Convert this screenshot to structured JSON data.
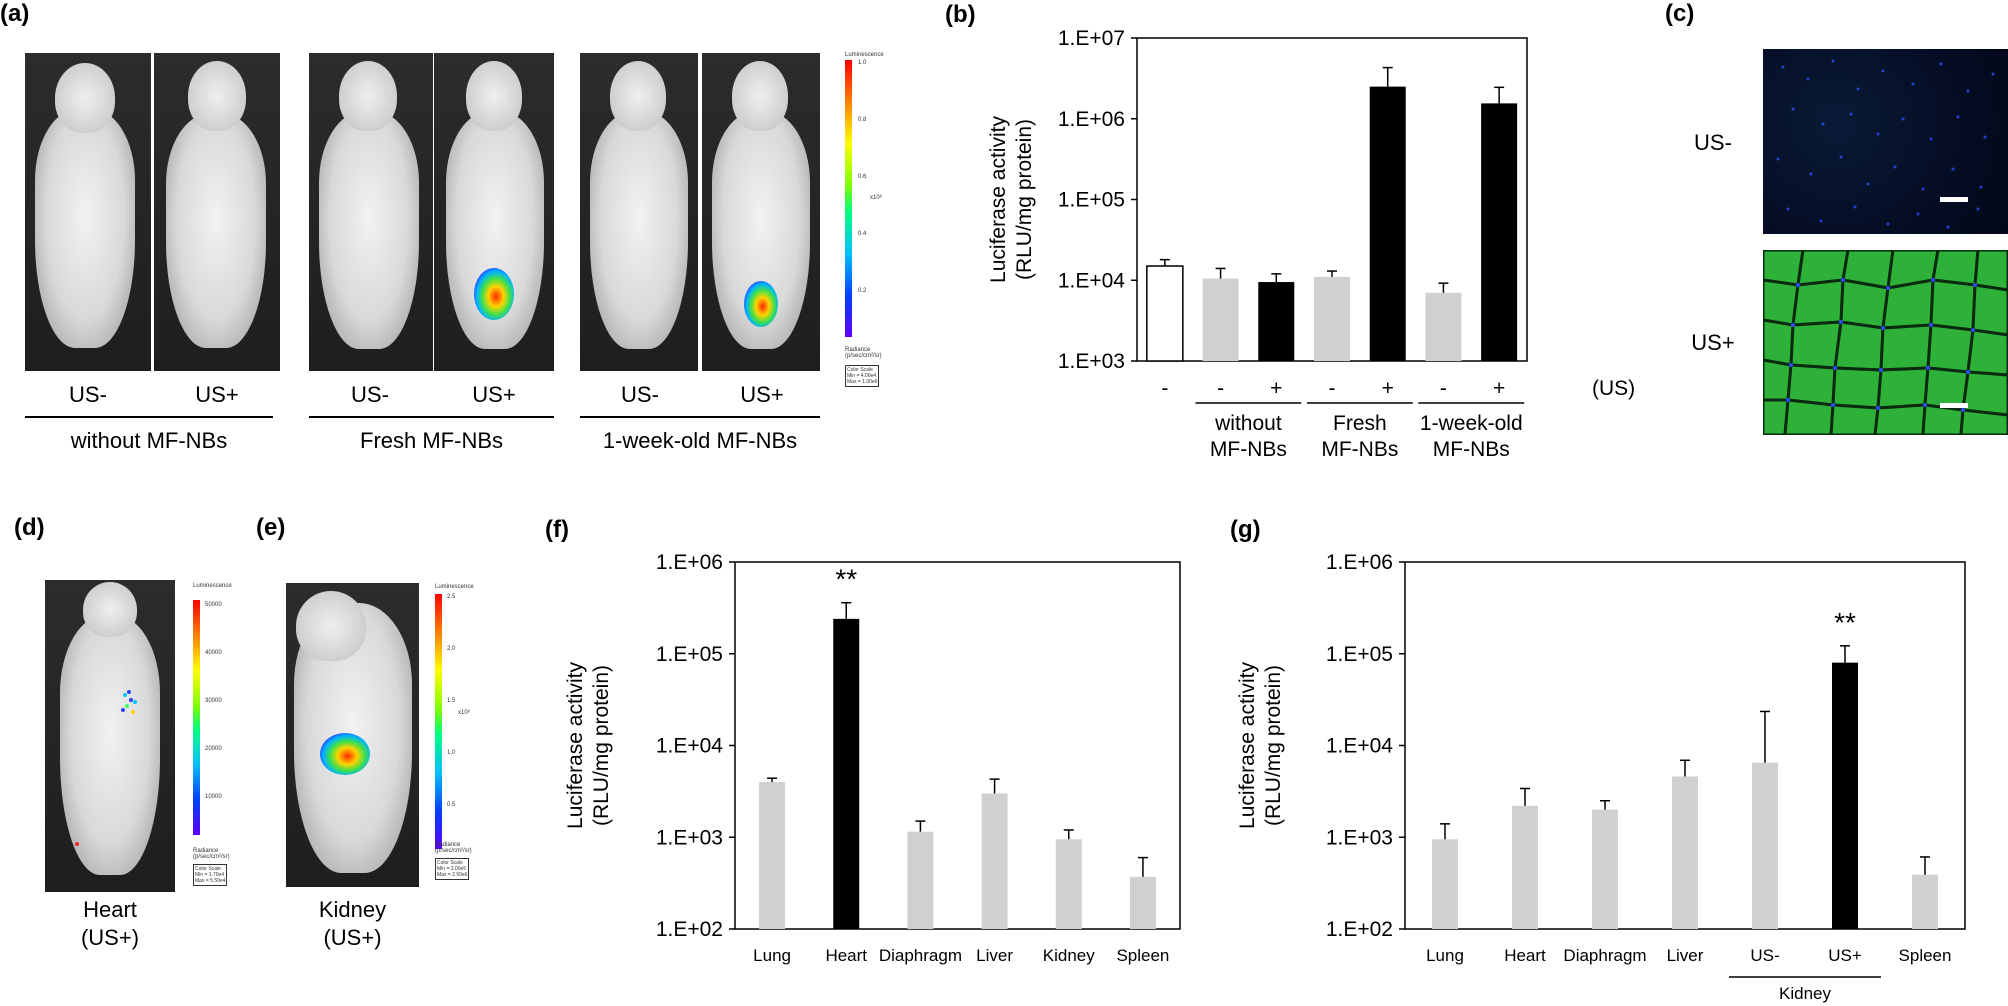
{
  "panels": {
    "a": {
      "label": "(a)",
      "us_minus": "US-",
      "us_plus": "US+",
      "groups": [
        "without MF-NBs",
        "Fresh MF-NBs",
        "1-week-old MF-NBs"
      ],
      "scale": {
        "title": "Luminescence",
        "ticks": [
          "1.0",
          "0.8",
          "0.6",
          "0.4",
          "0.2"
        ],
        "unit": "x10⁶",
        "radiance": "Radiance\n(p/sec/cm²/sr)",
        "box": "Color Scale\nMin = 4.00e4\nMax = 1.00e6"
      }
    },
    "c": {
      "label": "(c)",
      "rows": [
        "US-",
        "US+"
      ]
    },
    "d": {
      "label": "(d)",
      "caption1": "Heart",
      "caption2": "(US+)",
      "scale": {
        "title": "Luminescence",
        "ticks": [
          "50000",
          "40000",
          "30000",
          "20000",
          "10000"
        ],
        "radiance": "Radiance\n(p/sec/cm²/sr)",
        "box": "Color Scale\nMin = 1.70e4\nMax = 5.50e4"
      }
    },
    "e": {
      "label": "(e)",
      "caption1": "Kidney",
      "caption2": "(US+)",
      "scale": {
        "title": "Luminescence",
        "ticks": [
          "2.5",
          "2.0",
          "1.5",
          "1.0",
          "0.5"
        ],
        "unit": "x10⁶",
        "radiance": "Radiance\n(p/sec/cm²/sr)",
        "box": "Color Scale\nMin = 3.00e5\nMax = 2.50e6"
      }
    }
  },
  "chart_data": [
    {
      "id": "b",
      "panel_label": "(b)",
      "type": "bar",
      "yscale": "log",
      "ylim": [
        1000,
        10000000
      ],
      "yticks": [
        "1.E+03",
        "1.E+04",
        "1.E+05",
        "1.E+06",
        "1.E+07"
      ],
      "ylabel": "Luciferase activity\n(RLU/mg protein)",
      "categories": [
        "-",
        "-",
        "+",
        "-",
        "+",
        "-",
        "+"
      ],
      "values": [
        15000,
        10500,
        9500,
        11000,
        2500000,
        7000,
        1550000
      ],
      "errors": [
        3000,
        3500,
        2500,
        2000,
        1800000,
        2200,
        900000
      ],
      "colors": [
        "#ffffff",
        "#d0d0d0",
        "#000000",
        "#d0d0d0",
        "#000000",
        "#d0d0d0",
        "#000000"
      ],
      "x_suffix": "(US)",
      "groups": [
        {
          "label": "without\nMF-NBs",
          "from": 1,
          "to": 2
        },
        {
          "label": "Fresh\nMF-NBs",
          "from": 3,
          "to": 4
        },
        {
          "label": "1-week-old\nMF-NBs",
          "from": 5,
          "to": 6
        }
      ]
    },
    {
      "id": "f",
      "panel_label": "(f)",
      "type": "bar",
      "yscale": "log",
      "ylim": [
        100,
        1000000
      ],
      "yticks": [
        "1.E+02",
        "1.E+03",
        "1.E+04",
        "1.E+05",
        "1.E+06"
      ],
      "ylabel": "Luciferase activity\n(RLU/mg protein)",
      "categories": [
        "Lung",
        "Heart",
        "Diaphragm",
        "Liver",
        "Kidney",
        "Spleen"
      ],
      "values": [
        4000,
        240000,
        1150,
        3000,
        950,
        370
      ],
      "errors": [
        400,
        120000,
        350,
        1300,
        250,
        230
      ],
      "colors": [
        "#d0d0d0",
        "#000000",
        "#d0d0d0",
        "#d0d0d0",
        "#d0d0d0",
        "#d0d0d0"
      ],
      "annotations": [
        {
          "index": 1,
          "text": "**"
        }
      ],
      "groups": []
    },
    {
      "id": "g",
      "panel_label": "(g)",
      "type": "bar",
      "yscale": "log",
      "ylim": [
        100,
        1000000
      ],
      "yticks": [
        "1.E+02",
        "1.E+03",
        "1.E+04",
        "1.E+05",
        "1.E+06"
      ],
      "ylabel": "Luciferase activity\n(RLU/mg protein)",
      "categories": [
        "Lung",
        "Heart",
        "Diaphragm",
        "Liver",
        "US-",
        "US+",
        "Spleen"
      ],
      "values": [
        950,
        2200,
        2000,
        4600,
        6500,
        80000,
        390
      ],
      "errors": [
        450,
        1200,
        500,
        2300,
        17000,
        42000,
        220
      ],
      "colors": [
        "#d0d0d0",
        "#d0d0d0",
        "#d0d0d0",
        "#d0d0d0",
        "#d0d0d0",
        "#000000",
        "#d0d0d0"
      ],
      "annotations": [
        {
          "index": 5,
          "text": "**"
        }
      ],
      "groups": [
        {
          "label": "Kidney",
          "from": 4,
          "to": 5
        }
      ]
    }
  ]
}
